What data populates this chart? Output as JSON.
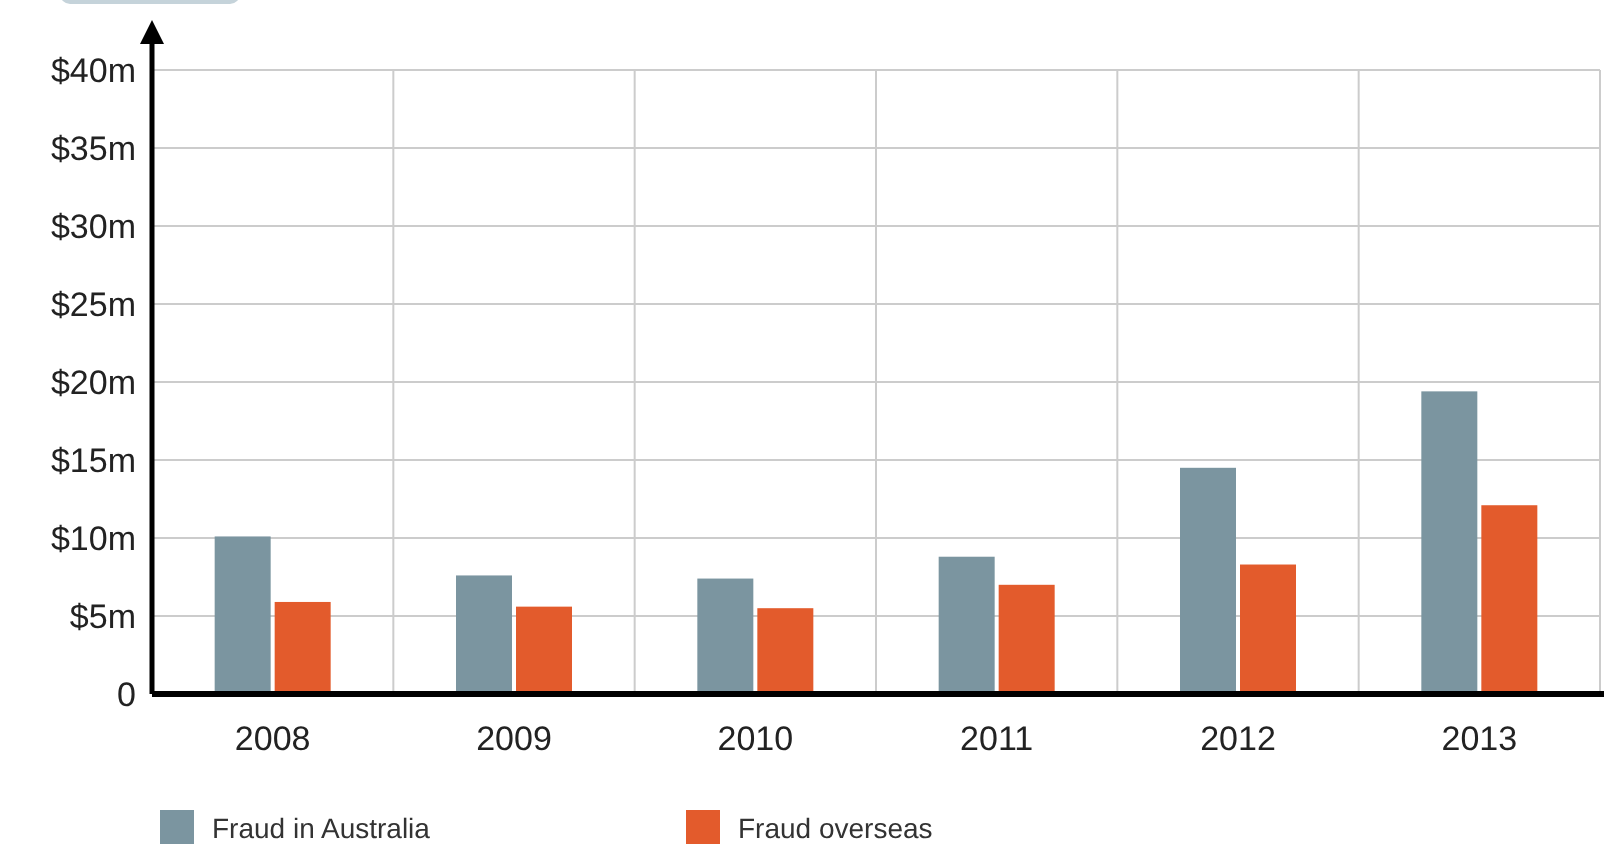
{
  "chart_data": {
    "type": "bar",
    "categories": [
      "2008",
      "2009",
      "2010",
      "2011",
      "2012",
      "2013"
    ],
    "series": [
      {
        "name": "Fraud in Australia",
        "color": "#7b95a0",
        "values": [
          10.1,
          7.6,
          7.4,
          8.8,
          14.5,
          19.4
        ]
      },
      {
        "name": "Fraud overseas",
        "color": "#e35b2c",
        "values": [
          5.9,
          5.6,
          5.5,
          7.0,
          8.3,
          12.1
        ]
      }
    ],
    "ylim": [
      0,
      40
    ],
    "yticks": [
      {
        "value": 0,
        "label": "0"
      },
      {
        "value": 5,
        "label": "$5m"
      },
      {
        "value": 10,
        "label": "$10m"
      },
      {
        "value": 15,
        "label": "$15m"
      },
      {
        "value": 20,
        "label": "$20m"
      },
      {
        "value": 25,
        "label": "$25m"
      },
      {
        "value": 30,
        "label": "$30m"
      },
      {
        "value": 35,
        "label": "$35m"
      },
      {
        "value": 40,
        "label": "$40m"
      }
    ],
    "grid": true,
    "legend": "bottom left"
  }
}
